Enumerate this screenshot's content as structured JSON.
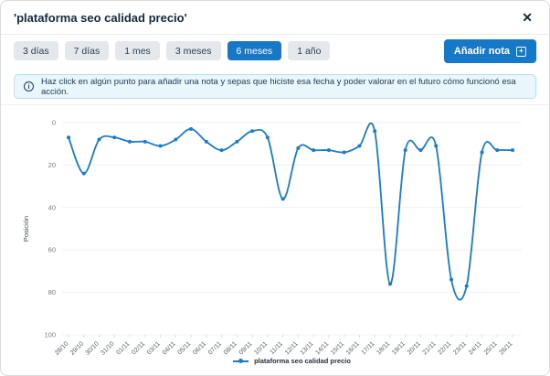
{
  "header": {
    "title": "'plataforma seo calidad precio'",
    "close_glyph": "✕"
  },
  "toolbar": {
    "ranges": [
      {
        "label": "3 días",
        "active": false
      },
      {
        "label": "7 días",
        "active": false
      },
      {
        "label": "1 mes",
        "active": false
      },
      {
        "label": "3 meses",
        "active": false
      },
      {
        "label": "6 meses",
        "active": true
      },
      {
        "label": "1 año",
        "active": false
      }
    ],
    "add_note_label": "Añadir nota",
    "add_note_icon_glyph": "+"
  },
  "banner": {
    "icon_glyph": "i",
    "text": "Haz click en algún punto para añadir una nota y sepas que hiciste esa fecha y poder valorar en el futuro cómo funcionó esa acción."
  },
  "chart_data": {
    "type": "line",
    "title": "",
    "xlabel": "",
    "ylabel": "Posición",
    "ylim": [
      0,
      100
    ],
    "y_inverted": true,
    "y_ticks": [
      0,
      20,
      40,
      60,
      80,
      100
    ],
    "grid": "horizontal",
    "smooth": true,
    "legend_position": "bottom",
    "categories": [
      "28/10",
      "29/10",
      "30/10",
      "31/10",
      "01/11",
      "02/11",
      "03/11",
      "04/11",
      "05/11",
      "06/11",
      "07/11",
      "08/11",
      "09/11",
      "10/11",
      "11/11",
      "12/11",
      "13/11",
      "14/11",
      "15/11",
      "16/11",
      "17/11",
      "18/11",
      "19/11",
      "20/11",
      "21/11",
      "22/11",
      "23/11",
      "24/11",
      "25/11",
      "26/11"
    ],
    "series": [
      {
        "name": "plataforma seo calidad precio",
        "color": "#1a7bc9",
        "values": [
          7,
          24,
          8,
          7,
          9,
          9,
          11,
          8,
          3,
          9,
          13,
          9,
          4,
          7,
          36,
          12,
          13,
          13,
          14,
          11,
          4,
          76,
          13,
          13,
          11,
          74,
          77,
          14,
          13,
          13
        ]
      }
    ]
  },
  "colors": {
    "accent_blue": "#1878c8",
    "line_blue": "#1a7bc9",
    "banner_bg": "#e9f6fb",
    "banner_border": "#b5e0f0",
    "gridline": "#edf0f3",
    "tick_text": "#717b86",
    "x_tick_text": "#525e6b",
    "axis_title": "#3f4c59"
  }
}
